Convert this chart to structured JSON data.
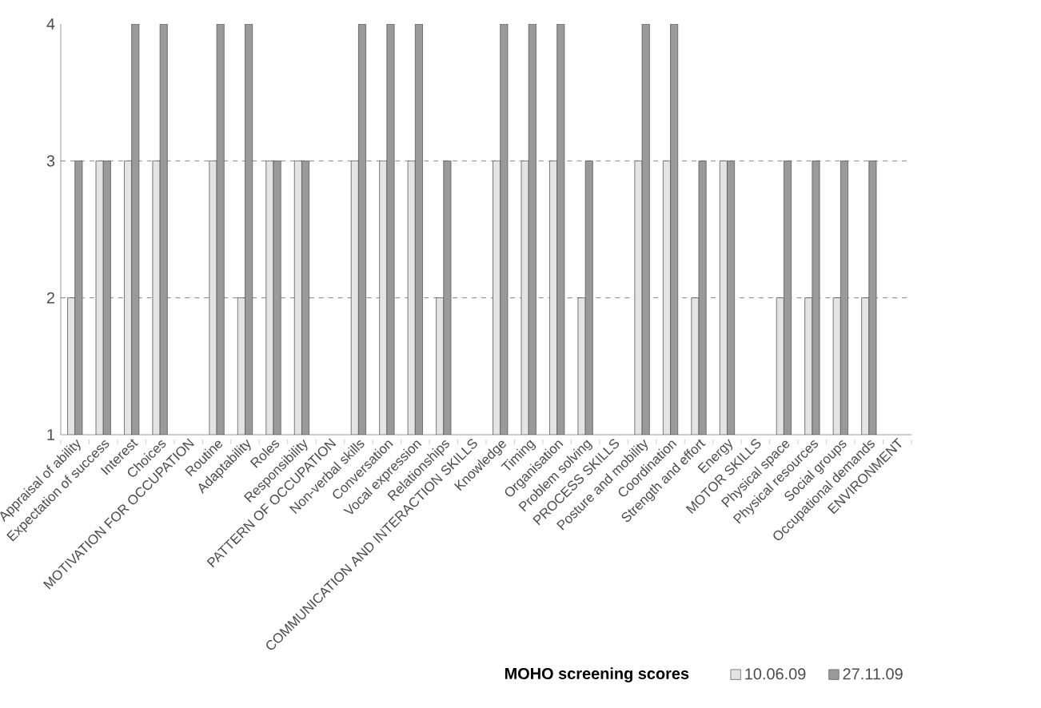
{
  "chart_data": {
    "type": "bar",
    "xlabel": "MOHO screening scores",
    "categories": [
      "Appraisal of ability",
      "Expectation of success",
      "Interest",
      "Choices",
      "MOTIVATION FOR OCCUPATION",
      "Routine",
      "Adaptability",
      "Roles",
      "Responsibility",
      "PATTERN OF OCCUPATION",
      "Non-verbal skills",
      "Conversation",
      "Vocal expression",
      "Relationships",
      "COMMUNICATION AND INTERACTION SKILLS",
      "Knowledge",
      "Timing",
      "Organisation",
      "Problem solving",
      "PROCESS SKILLS",
      "Posture and mobility",
      "Coordination",
      "Strength and effort",
      "Energy",
      "MOTOR SKILLS",
      "Physical space",
      "Physical resources",
      "Social groups",
      "Occupational demands",
      "ENVIRONMENT"
    ],
    "series": [
      {
        "name": "10.06.09",
        "color": "#e4e4e4",
        "values": [
          2,
          3,
          3,
          3,
          null,
          3,
          2,
          3,
          3,
          null,
          3,
          3,
          3,
          2,
          null,
          3,
          3,
          3,
          2,
          null,
          3,
          3,
          2,
          3,
          null,
          2,
          2,
          2,
          2,
          null
        ]
      },
      {
        "name": "27.11.09",
        "color": "#9a9a9a",
        "values": [
          3,
          3,
          4,
          4,
          null,
          4,
          4,
          3,
          3,
          null,
          4,
          4,
          4,
          3,
          null,
          4,
          4,
          4,
          3,
          null,
          4,
          4,
          3,
          3,
          null,
          3,
          3,
          3,
          3,
          null
        ]
      }
    ],
    "ylim": [
      1,
      4
    ],
    "yticks": [
      1,
      2,
      3,
      4
    ],
    "grid": "y",
    "legend": "bottom right"
  }
}
